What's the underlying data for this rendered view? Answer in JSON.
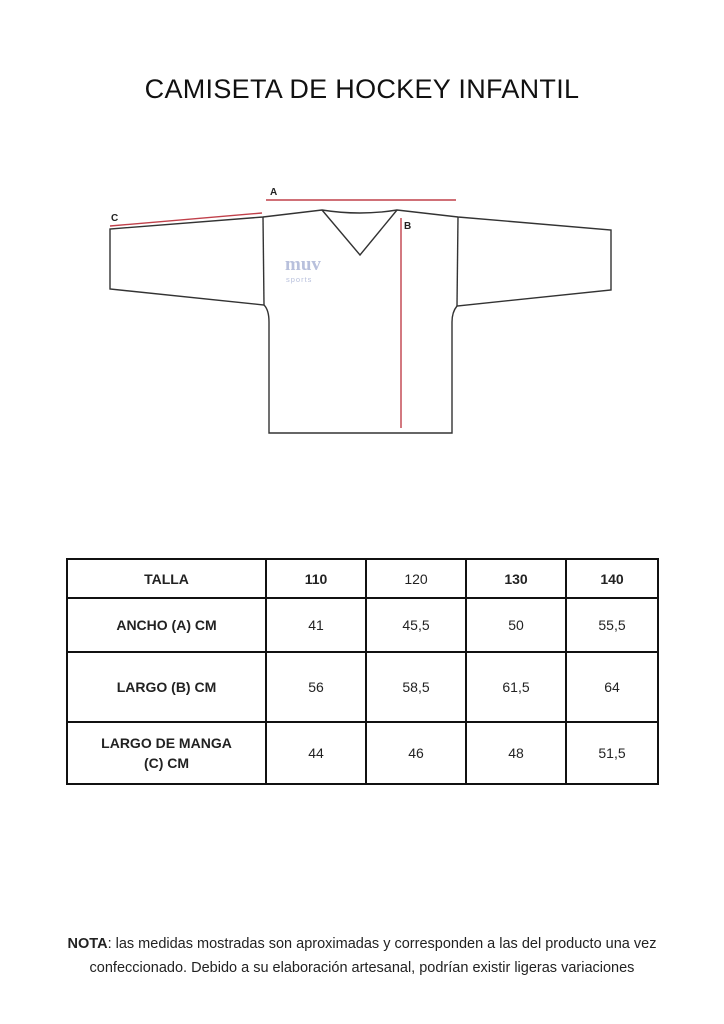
{
  "title": "CAMISETA DE HOCKEY INFANTIL",
  "diagram": {
    "labels": {
      "a": "A",
      "b": "B",
      "c": "C"
    },
    "logo": {
      "main": "muv",
      "sub": "sports"
    },
    "measure_color": "#c0404a"
  },
  "table": {
    "header": [
      "TALLA",
      "110",
      "120",
      "130",
      "140"
    ],
    "header_bold": [
      true,
      true,
      false,
      true,
      true
    ],
    "rows": [
      {
        "label": "ANCHO (A) CM",
        "values": [
          "41",
          "45,5",
          "50",
          "55,5"
        ]
      },
      {
        "label": "LARGO (B) CM",
        "values": [
          "56",
          "58,5",
          "61,5",
          "64"
        ]
      },
      {
        "label": "LARGO DE MANGA (C) CM",
        "values": [
          "44",
          "46",
          "48",
          "51,5"
        ]
      }
    ]
  },
  "note": {
    "prefix": "NOTA",
    "text": ": las medidas mostradas son aproximadas y corresponden a las del producto una vez confeccionado. Debido a su elaboración artesanal, podrían existir ligeras variaciones"
  }
}
